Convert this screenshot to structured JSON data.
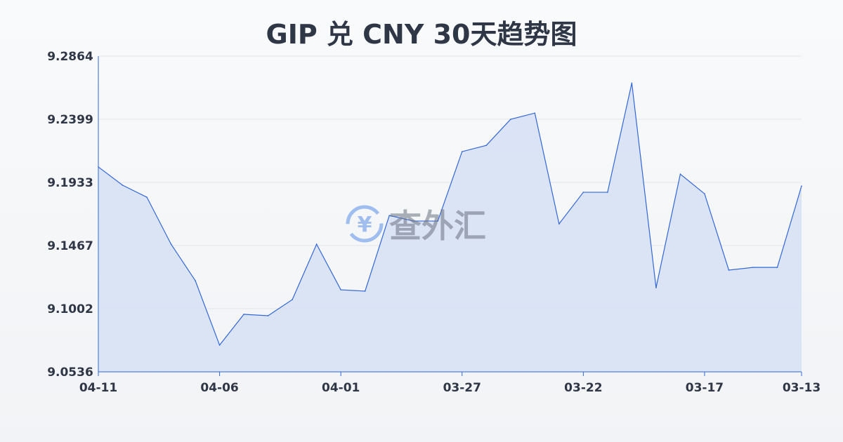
{
  "chart_data": {
    "type": "area",
    "title": "GIP 兑 CNY 30天趋势图",
    "xlabel": "",
    "ylabel": "",
    "x": [
      "04-11",
      "04-10",
      "04-09",
      "04-08",
      "04-07",
      "04-06",
      "04-05",
      "04-04",
      "04-03",
      "04-02",
      "04-01",
      "03-31",
      "03-30",
      "03-29",
      "03-28",
      "03-27",
      "03-26",
      "03-25",
      "03-24",
      "03-23",
      "03-22",
      "03-21",
      "03-20",
      "03-19",
      "03-18",
      "03-17",
      "03-16",
      "03-15",
      "03-14",
      "03-13"
    ],
    "values": [
      9.2047,
      9.1912,
      9.1824,
      9.1477,
      9.1208,
      9.0733,
      9.096,
      9.095,
      9.1069,
      9.1477,
      9.1141,
      9.1131,
      9.1689,
      9.1648,
      9.1648,
      9.216,
      9.2206,
      9.2398,
      9.2444,
      9.1627,
      9.186,
      9.186,
      9.2666,
      9.1156,
      9.1994,
      9.1849,
      9.1286,
      9.1306,
      9.1306,
      9.1906
    ],
    "x_tick_labels": [
      "04-11",
      "04-06",
      "04-01",
      "03-27",
      "03-22",
      "03-17",
      "03-13"
    ],
    "y_tick_labels": [
      "9.2864",
      "9.2399",
      "9.1933",
      "9.1467",
      "9.1002",
      "9.0536"
    ],
    "ylim": [
      9.0536,
      9.2864
    ],
    "grid": true,
    "line_color": "#3367d6",
    "fill_color": "#d6e0f5"
  },
  "watermark": {
    "text": "查外汇",
    "icon": "yen-exchange-icon"
  }
}
